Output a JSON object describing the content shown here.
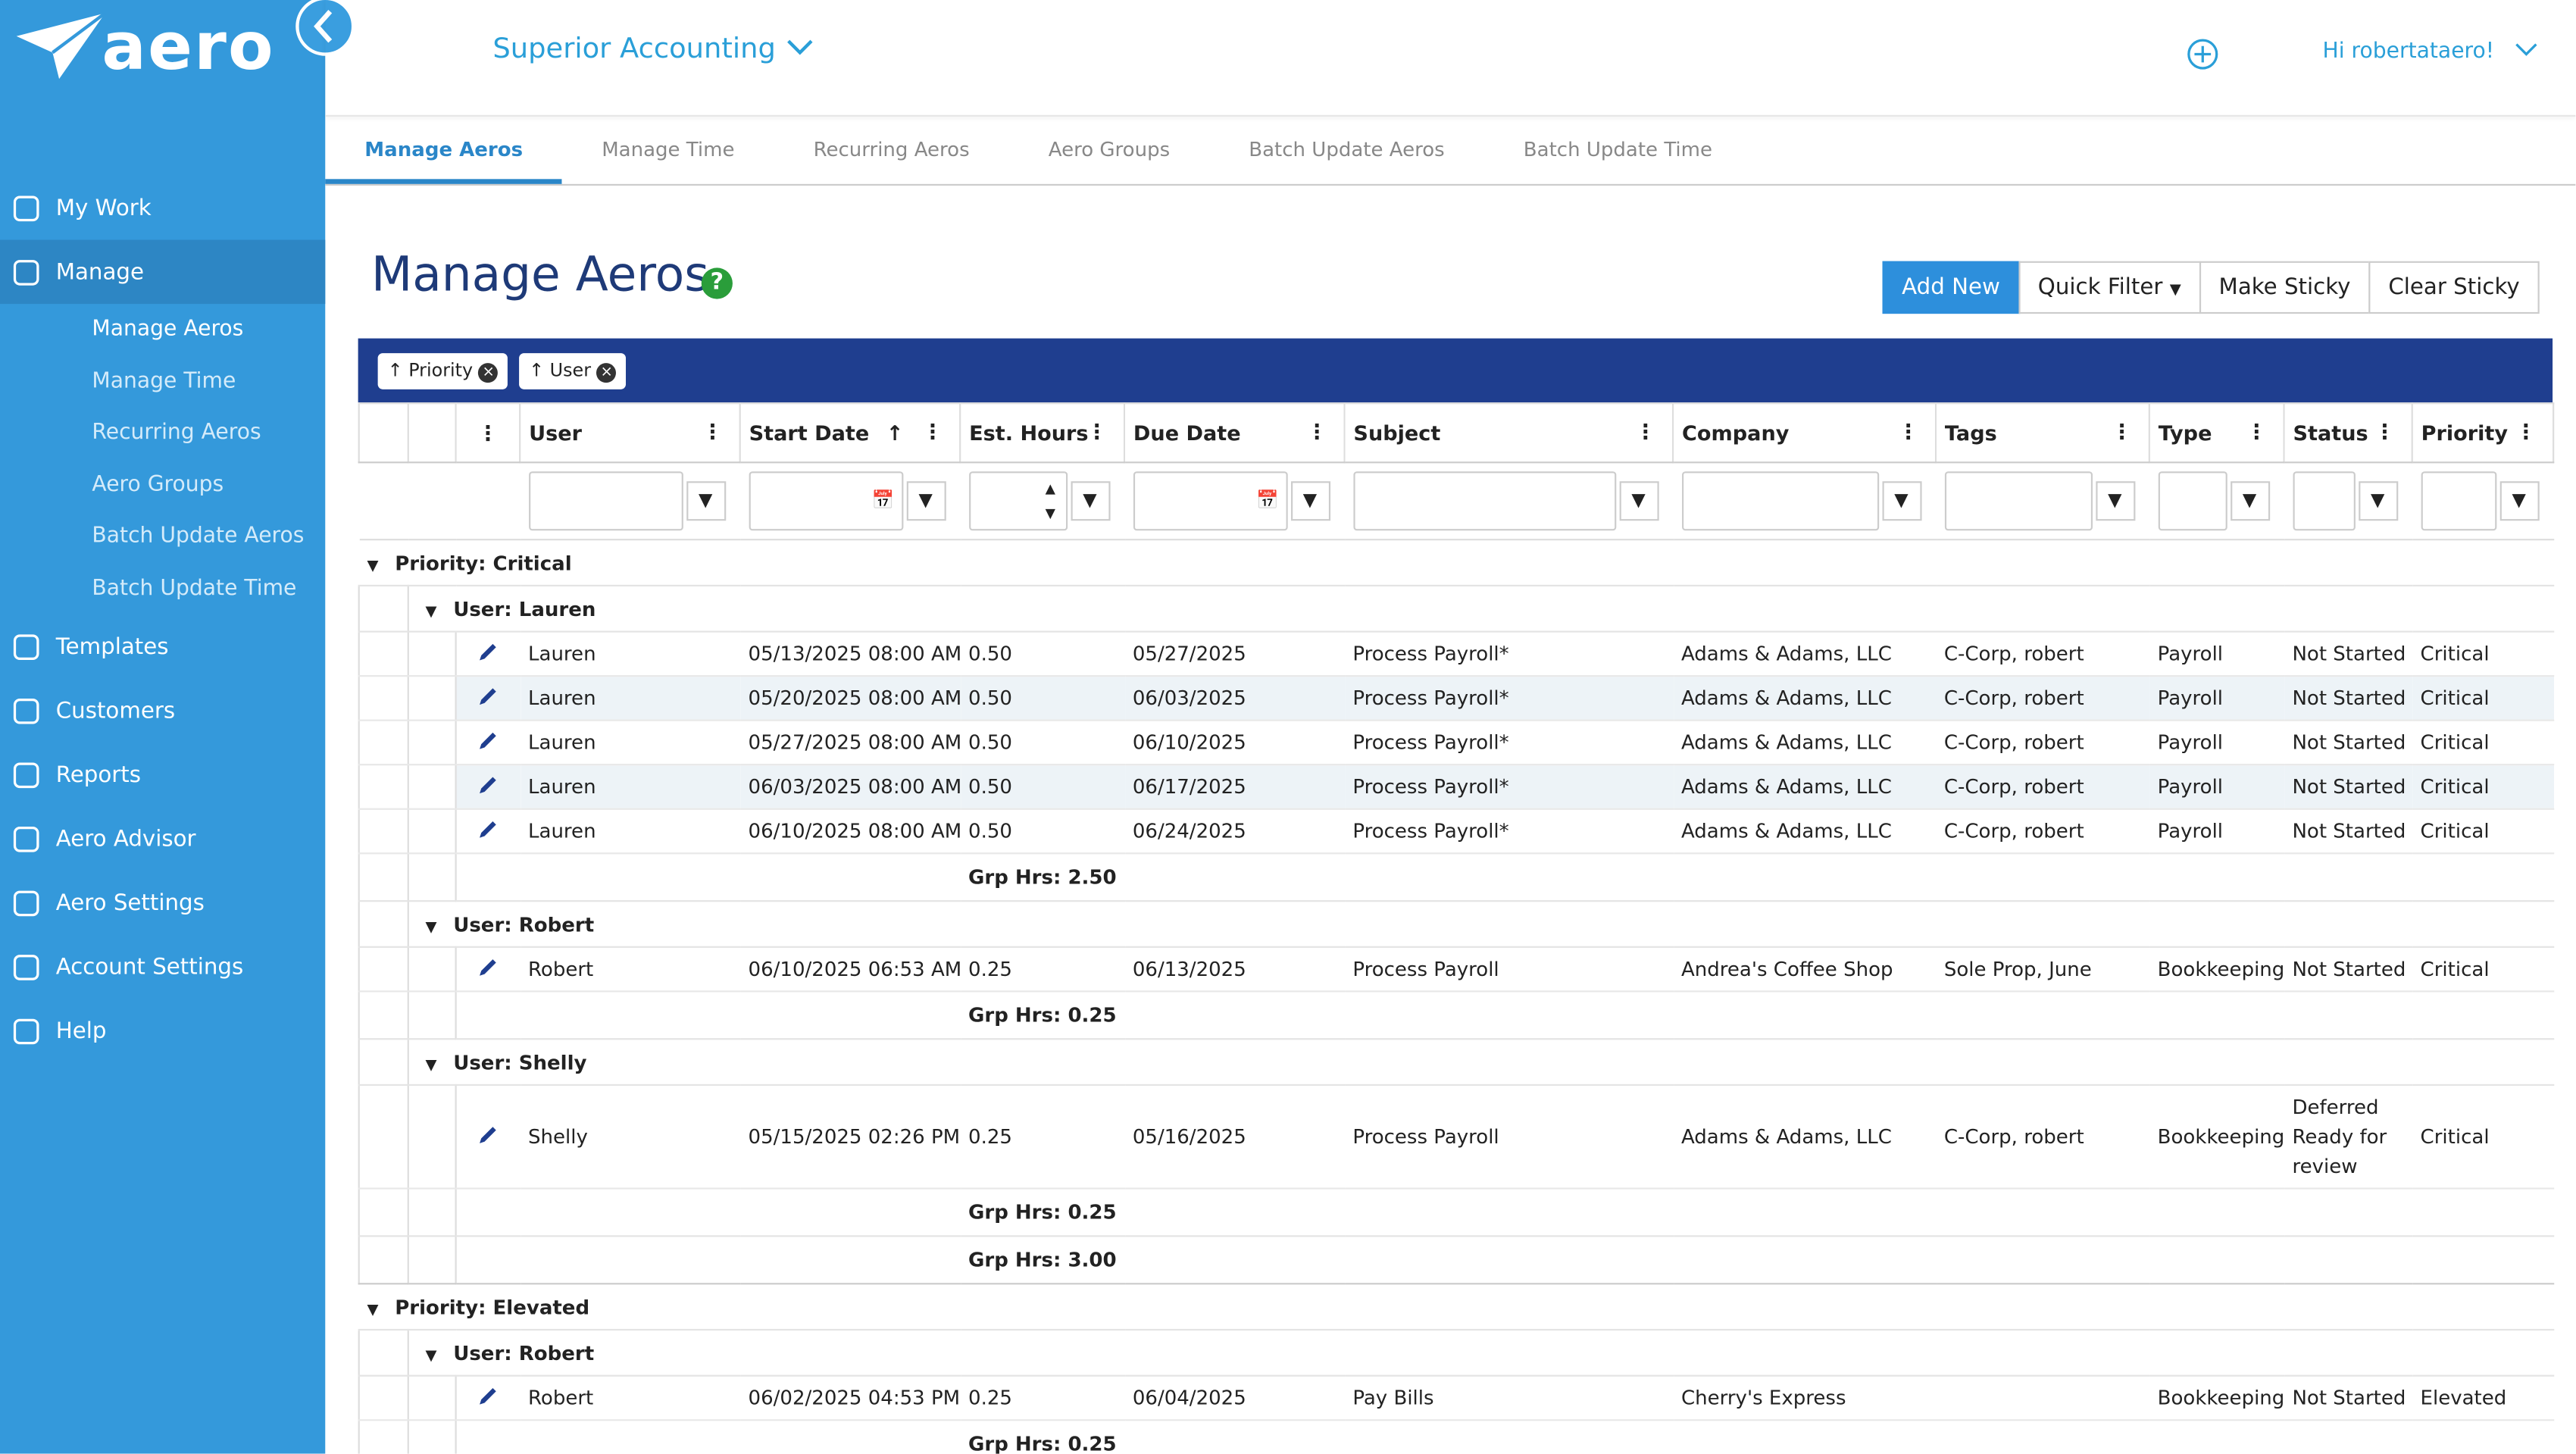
{
  "brand": "aero",
  "header": {
    "company": "Superior Accounting",
    "greeting": "Hi robertataero!"
  },
  "tabs": [
    "Manage Aeros",
    "Manage Time",
    "Recurring Aeros",
    "Aero Groups",
    "Batch Update Aeros",
    "Batch Update Time"
  ],
  "nav": [
    {
      "label": "My Work"
    },
    {
      "label": "Manage",
      "children": [
        "Manage Aeros",
        "Manage Time",
        "Recurring Aeros",
        "Aero Groups",
        "Batch Update Aeros",
        "Batch Update Time"
      ]
    },
    {
      "label": "Templates"
    },
    {
      "label": "Customers"
    },
    {
      "label": "Reports"
    },
    {
      "label": "Aero Advisor"
    },
    {
      "label": "Aero Settings"
    },
    {
      "label": "Account Settings"
    },
    {
      "label": "Help"
    }
  ],
  "page": {
    "title": "Manage Aeros",
    "buttons": [
      "Add New",
      "Quick Filter",
      "Make Sticky",
      "Clear Sticky"
    ]
  },
  "grid": {
    "sort_chips": [
      "Priority",
      "User"
    ],
    "columns": [
      "User",
      "Start Date",
      "Est. Hours",
      "Due Date",
      "Subject",
      "Company",
      "Tags",
      "Type",
      "Status",
      "Priority"
    ],
    "groups": [
      {
        "label": "Priority: Critical",
        "total": "Grp Hrs: 3.00",
        "subgroups": [
          {
            "label": "User: Lauren",
            "total": "Grp Hrs: 2.50",
            "rows": [
              [
                "Lauren",
                "05/13/2025 08:00 AM",
                "0.50",
                "05/27/2025",
                "Process Payroll*",
                "Adams & Adams, LLC",
                "C-Corp, robert",
                "Payroll",
                "Not Started",
                "Critical"
              ],
              [
                "Lauren",
                "05/20/2025 08:00 AM",
                "0.50",
                "06/03/2025",
                "Process Payroll*",
                "Adams & Adams, LLC",
                "C-Corp, robert",
                "Payroll",
                "Not Started",
                "Critical"
              ],
              [
                "Lauren",
                "05/27/2025 08:00 AM",
                "0.50",
                "06/10/2025",
                "Process Payroll*",
                "Adams & Adams, LLC",
                "C-Corp, robert",
                "Payroll",
                "Not Started",
                "Critical"
              ],
              [
                "Lauren",
                "06/03/2025 08:00 AM",
                "0.50",
                "06/17/2025",
                "Process Payroll*",
                "Adams & Adams, LLC",
                "C-Corp, robert",
                "Payroll",
                "Not Started",
                "Critical"
              ],
              [
                "Lauren",
                "06/10/2025 08:00 AM",
                "0.50",
                "06/24/2025",
                "Process Payroll*",
                "Adams & Adams, LLC",
                "C-Corp, robert",
                "Payroll",
                "Not Started",
                "Critical"
              ]
            ]
          },
          {
            "label": "User: Robert",
            "total": "Grp Hrs: 0.25",
            "rows": [
              [
                "Robert",
                "06/10/2025 06:53 AM",
                "0.25",
                "06/13/2025",
                "Process Payroll",
                "Andrea's Coffee Shop",
                "Sole Prop, June",
                "Bookkeeping",
                "Not Started",
                "Critical"
              ]
            ]
          },
          {
            "label": "User: Shelly",
            "total": "Grp Hrs: 0.25",
            "rows": [
              [
                "Shelly",
                "05/15/2025 02:26 PM",
                "0.25",
                "05/16/2025",
                "Process Payroll",
                "Adams & Adams, LLC",
                "C-Corp, robert",
                "Bookkeeping",
                "Deferred Ready for review",
                "Critical"
              ]
            ]
          }
        ]
      },
      {
        "label": "Priority: Elevated",
        "subgroups": [
          {
            "label": "User: Robert",
            "total": "Grp Hrs: 0.25",
            "rows": [
              [
                "Robert",
                "06/02/2025 04:53 PM",
                "0.25",
                "06/04/2025",
                "Pay Bills",
                "Cherry's Express",
                null,
                "Bookkeeping",
                "Not Started",
                "Elevated"
              ]
            ]
          }
        ]
      }
    ]
  }
}
